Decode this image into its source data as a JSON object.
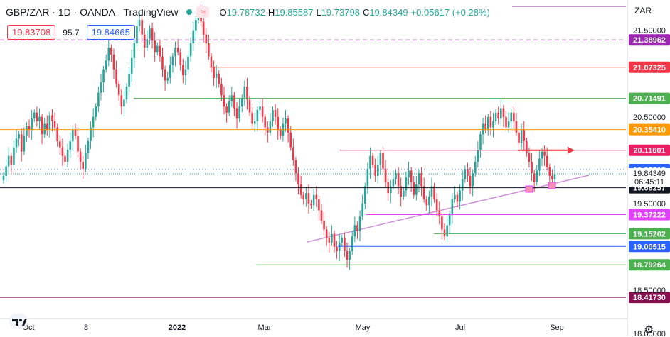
{
  "header": {
    "symbol": "GBP/ZAR · 1D · OANDA · TradingView",
    "open_label": "O",
    "open": "19.78732",
    "high_label": "H",
    "high": "19.85587",
    "low_label": "L",
    "low": "19.73798",
    "close_label": "C",
    "close": "19.84349",
    "change": "+0.05617 (+0.28%)",
    "wave_icon": "≈"
  },
  "trade": {
    "sell": "19.83708",
    "spread": "95.7",
    "buy": "19.84665"
  },
  "currency": "ZAR",
  "colors": {
    "up": "#26a69a",
    "down": "#f23645",
    "purple": "#9c27b0",
    "red": "#f23645",
    "green": "#4caf50",
    "orange": "#ff9800",
    "blue": "#2962ff",
    "darkred": "#880e4f",
    "pink": "#e040fb",
    "trend": "#ce93d8"
  },
  "chart_data": {
    "type": "candlestick",
    "ylim": [
      18.0,
      21.85
    ],
    "x_tick_labels": [
      "Oct",
      "8",
      "2022",
      "Mar",
      "May",
      "Jul",
      "Sep"
    ],
    "y_tick_labels": [
      "21.50000",
      "20.50000",
      "19.50000",
      "18.50000",
      "18.00000"
    ],
    "price_label": {
      "value": "19.84349",
      "countdown": "06:45:11"
    },
    "levels": [
      {
        "label": "21.38962",
        "value": 21.38962,
        "color": "#9c27b0",
        "style": "dashed",
        "tag_bg": "#9c27b0"
      },
      {
        "label": "21.07325",
        "value": 21.07325,
        "color": "#f23645",
        "style": "solid",
        "tag_bg": "#f23645"
      },
      {
        "label": "20.71491",
        "value": 20.71491,
        "color": "#4caf50",
        "style": "solid",
        "tag_bg": "#4caf50"
      },
      {
        "label": "20.35410",
        "value": 20.3541,
        "color": "#ff9800",
        "style": "solid",
        "tag_bg": "#ff9800"
      },
      {
        "label": "20.11601",
        "value": 20.11601,
        "color": "#e91e63",
        "style": "solid",
        "tag_bg": "#e91e63"
      },
      {
        "label": "19.89212",
        "value": 19.89212,
        "color": "#2962ff",
        "style": "dotted",
        "tag_bg": "#2962ff"
      },
      {
        "label": "19.68257",
        "value": 19.68257,
        "color": "#131722",
        "style": "solid",
        "tag_bg": "#131722"
      },
      {
        "label": "19.37222",
        "value": 19.37222,
        "color": "#e040fb",
        "style": "solid",
        "tag_bg": "#e040fb"
      },
      {
        "label": "19.15202",
        "value": 19.15202,
        "color": "#4caf50",
        "style": "solid",
        "tag_bg": "#4caf50"
      },
      {
        "label": "19.00515",
        "value": 19.00515,
        "color": "#2962ff",
        "style": "solid",
        "tag_bg": "#2962ff"
      },
      {
        "label": "18.79264",
        "value": 18.79264,
        "color": "#4caf50",
        "style": "solid",
        "tag_bg": "#4caf50"
      },
      {
        "label": "18.41730",
        "value": 18.4173,
        "color": "#880e4f",
        "style": "solid",
        "tag_bg": "#880e4f"
      }
    ],
    "close_series": [
      19.82,
      19.93,
      20.05,
      19.95,
      20.15,
      20.25,
      20.3,
      20.1,
      20.28,
      20.4,
      20.35,
      20.48,
      20.55,
      20.45,
      20.5,
      20.3,
      20.42,
      20.35,
      20.52,
      20.45,
      20.38,
      20.22,
      20.15,
      20.05,
      19.98,
      20.12,
      20.22,
      20.35,
      20.28,
      20.1,
      19.98,
      19.9,
      20.08,
      20.22,
      20.38,
      20.5,
      20.62,
      20.78,
      20.9,
      21.05,
      21.15,
      21.3,
      21.22,
      21.05,
      20.88,
      20.75,
      20.62,
      20.7,
      20.85,
      21.0,
      21.18,
      21.35,
      21.55,
      21.62,
      21.45,
      21.3,
      21.4,
      21.52,
      21.38,
      21.25,
      21.32,
      21.2,
      21.05,
      20.92,
      20.95,
      21.1,
      21.2,
      21.3,
      21.25,
      21.1,
      20.98,
      21.05,
      21.2,
      21.35,
      21.5,
      21.62,
      21.7,
      21.6,
      21.45,
      21.35,
      21.2,
      21.08,
      20.95,
      21.0,
      20.88,
      20.75,
      20.62,
      20.55,
      20.68,
      20.75,
      20.6,
      20.48,
      20.62,
      20.72,
      20.85,
      20.7,
      20.55,
      20.42,
      20.45,
      20.58,
      20.62,
      20.5,
      20.38,
      20.32,
      20.45,
      20.58,
      20.5,
      20.35,
      20.28,
      20.42,
      20.48,
      20.32,
      20.15,
      20.0,
      19.85,
      19.72,
      19.6,
      19.55,
      19.62,
      19.5,
      19.48,
      19.6,
      19.55,
      19.42,
      19.3,
      19.2,
      19.1,
      19.05,
      19.15,
      19.0,
      18.95,
      19.05,
      19.1,
      18.95,
      18.85,
      18.95,
      19.12,
      19.25,
      19.18,
      19.35,
      19.5,
      19.7,
      19.9,
      20.05,
      19.95,
      19.82,
      19.95,
      20.08,
      19.9,
      19.75,
      19.62,
      19.7,
      19.78,
      19.85,
      19.7,
      19.58,
      19.65,
      19.8,
      19.88,
      19.75,
      19.6,
      19.72,
      19.85,
      19.7,
      19.55,
      19.48,
      19.58,
      19.7,
      19.55,
      19.42,
      19.35,
      19.2,
      19.12,
      19.25,
      19.38,
      19.55,
      19.6,
      19.52,
      19.65,
      19.78,
      19.9,
      19.82,
      19.7,
      19.85,
      19.98,
      20.12,
      20.3,
      20.42,
      20.35,
      20.5,
      20.38,
      20.45,
      20.55,
      20.48,
      20.6,
      20.5,
      20.38,
      20.45,
      20.55,
      20.45,
      20.32,
      20.2,
      20.35,
      20.22,
      20.08,
      19.98,
      19.85,
      19.75,
      19.88,
      20.02,
      20.1,
      20.05,
      19.92,
      19.82,
      19.78,
      19.84
    ]
  }
}
